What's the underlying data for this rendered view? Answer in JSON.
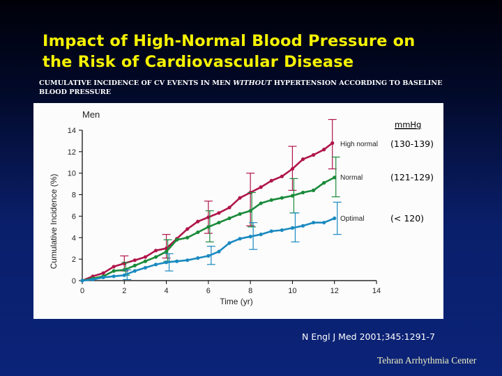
{
  "slide": {
    "title_line1": "Impact of High-Normal Blood Pressure on",
    "title_line2": "the Risk of Cardiovascular Disease",
    "subtitle_part1": "CUMULATIVE INCIDENCE OF CV  EVENTS IN MEN ",
    "subtitle_italic": "WITHOUT",
    "subtitle_part2": " HYPERTENSION ACCORDING TO BASELINE BLOOD PRESSURE",
    "citation": "N Engl J Med 2001;345:1291-7",
    "footer": "Tehran Arrhythmia Center",
    "colors": {
      "title": "#f5f200",
      "background": "#0b2378"
    }
  },
  "chart_data": {
    "type": "line",
    "title": "Men",
    "xlabel": "Time (yr)",
    "ylabel": "Cumulative Incidence (%)",
    "xlim": [
      0,
      14
    ],
    "ylim": [
      0,
      14
    ],
    "x_ticks": [
      "0",
      "2",
      "4",
      "6",
      "8",
      "10",
      "12",
      "14"
    ],
    "y_ticks": [
      "0",
      "2",
      "4",
      "6",
      "8",
      "10",
      "12",
      "14"
    ],
    "grid": false,
    "legend_header": "mmHg",
    "series": [
      {
        "name": "High normal",
        "range": "(130-139)",
        "color": "#b0154a",
        "x": [
          0,
          0.5,
          1,
          1.5,
          2,
          2.5,
          3,
          3.5,
          4,
          4.5,
          5,
          5.5,
          6,
          6.5,
          7,
          7.5,
          8,
          8.5,
          9,
          9.5,
          10,
          10.5,
          11,
          11.5,
          11.9
        ],
        "y": [
          0,
          0.4,
          0.7,
          1.3,
          1.6,
          1.9,
          2.2,
          2.8,
          3.0,
          3.9,
          4.8,
          5.5,
          5.9,
          6.3,
          6.8,
          7.7,
          8.2,
          8.7,
          9.3,
          9.7,
          10.4,
          11.3,
          11.7,
          12.2,
          12.8
        ],
        "error_bars": [
          {
            "x": 2,
            "low": 0.9,
            "high": 2.3
          },
          {
            "x": 4,
            "low": 2.1,
            "high": 4.3
          },
          {
            "x": 6,
            "low": 4.4,
            "high": 7.4
          },
          {
            "x": 8,
            "low": 5.1,
            "high": 10.0
          },
          {
            "x": 10,
            "low": 8.4,
            "high": 12.5
          },
          {
            "x": 11.9,
            "low": 10.4,
            "high": 15.0
          }
        ]
      },
      {
        "name": "Normal",
        "range": "(121-129)",
        "color": "#1a8a3a",
        "x": [
          0,
          0.5,
          1,
          1.5,
          2,
          2.5,
          3,
          3.5,
          4,
          4.5,
          5,
          5.5,
          6,
          6.5,
          7,
          7.5,
          8,
          8.5,
          9,
          9.5,
          10,
          10.5,
          11,
          11.5,
          12
        ],
        "y": [
          0,
          0.2,
          0.4,
          0.9,
          1.0,
          1.4,
          1.8,
          2.2,
          2.7,
          3.8,
          4.0,
          4.5,
          5.0,
          5.4,
          5.8,
          6.2,
          6.5,
          7.2,
          7.5,
          7.7,
          7.9,
          8.2,
          8.4,
          9.1,
          9.6
        ],
        "error_bars": [
          {
            "x": 2,
            "low": 0.5,
            "high": 1.7
          },
          {
            "x": 4,
            "low": 1.8,
            "high": 3.8
          },
          {
            "x": 6,
            "low": 3.6,
            "high": 6.5
          },
          {
            "x": 8,
            "low": 5.0,
            "high": 8.2
          },
          {
            "x": 10,
            "low": 6.3,
            "high": 9.5
          },
          {
            "x": 12,
            "low": 7.8,
            "high": 11.5
          }
        ]
      },
      {
        "name": "Optimal",
        "range": "(< 120)",
        "color": "#1a8ac0",
        "x": [
          0,
          0.5,
          1,
          1.5,
          2,
          2.5,
          3,
          3.5,
          4,
          4.5,
          5,
          5.5,
          6,
          6.5,
          7,
          7.5,
          8,
          8.5,
          9,
          9.5,
          10,
          10.5,
          11,
          11.5,
          12
        ],
        "y": [
          0,
          0.1,
          0.3,
          0.4,
          0.5,
          0.9,
          1.2,
          1.5,
          1.7,
          1.8,
          1.9,
          2.1,
          2.3,
          2.7,
          3.5,
          3.9,
          4.1,
          4.3,
          4.6,
          4.7,
          4.9,
          5.1,
          5.4,
          5.4,
          5.8
        ],
        "error_bars": [
          {
            "x": 2,
            "low": 0.1,
            "high": 1.0
          },
          {
            "x": 4,
            "low": 0.9,
            "high": 2.5
          },
          {
            "x": 6,
            "low": 1.5,
            "high": 3.2
          },
          {
            "x": 8,
            "low": 2.9,
            "high": 5.4
          },
          {
            "x": 10,
            "low": 3.6,
            "high": 6.3
          },
          {
            "x": 12,
            "low": 4.3,
            "high": 7.3
          }
        ]
      }
    ]
  }
}
